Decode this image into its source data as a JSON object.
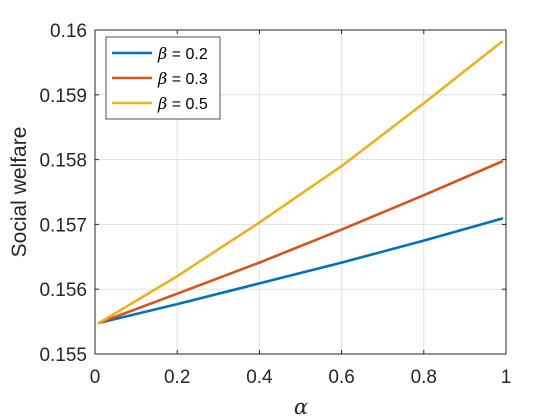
{
  "chart_data": {
    "type": "line",
    "title": "",
    "xlabel": "α",
    "ylabel": "Social welfare",
    "xlim": [
      0,
      1
    ],
    "ylim": [
      0.155,
      0.16
    ],
    "x_ticks": [
      "0",
      "0.2",
      "0.4",
      "0.6",
      "0.8",
      "1"
    ],
    "x_tick_values": [
      0,
      0.2,
      0.4,
      0.6,
      0.8,
      1
    ],
    "y_ticks": [
      "0.155",
      "0.156",
      "0.157",
      "0.158",
      "0.159",
      "0.16"
    ],
    "y_tick_values": [
      0.155,
      0.156,
      0.157,
      0.158,
      0.159,
      0.16
    ],
    "grid": true,
    "legend_position": "top-left",
    "series": [
      {
        "name": "β = 0.2",
        "symbol": "β",
        "value_label": " = 0.2",
        "color": "#0072BD",
        "x": [
          0.01,
          0.2,
          0.4,
          0.6,
          0.8,
          0.99
        ],
        "y": [
          0.15548,
          0.15577,
          0.15609,
          0.15641,
          0.15675,
          0.15709
        ]
      },
      {
        "name": "β = 0.3",
        "symbol": "β",
        "value_label": " = 0.3",
        "color": "#D95319",
        "x": [
          0.01,
          0.2,
          0.4,
          0.6,
          0.8,
          0.99
        ],
        "y": [
          0.15548,
          0.15593,
          0.15641,
          0.15692,
          0.15745,
          0.15797
        ]
      },
      {
        "name": "β = 0.5",
        "symbol": "β",
        "value_label": " = 0.5",
        "color": "#EDB120",
        "x": [
          0.01,
          0.2,
          0.4,
          0.6,
          0.8,
          0.99
        ],
        "y": [
          0.15548,
          0.1562,
          0.15703,
          0.1579,
          0.15887,
          0.15982
        ]
      }
    ]
  }
}
